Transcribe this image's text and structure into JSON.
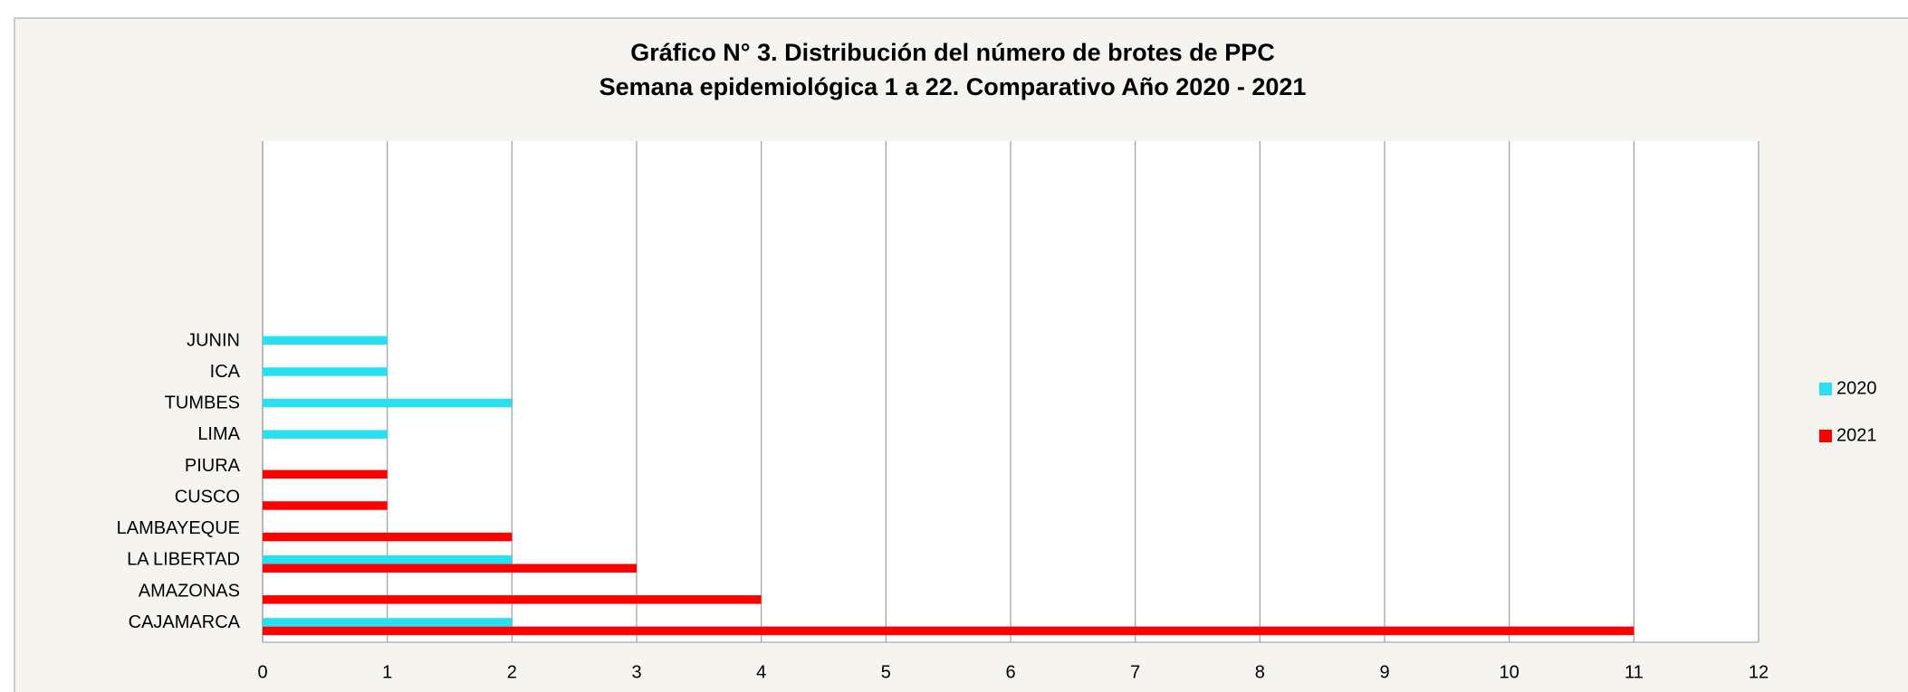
{
  "chart_data": {
    "type": "hbar",
    "title": "Gráfico N° 3. Distribución del número de brotes de PPC",
    "subtitle": "Semana epidemiológica 1 a 22. Comparativo Año 2020 - 2021",
    "categories": [
      "CAJAMARCA",
      "AMAZONAS",
      "LA LIBERTAD",
      "LAMBAYEQUE",
      "CUSCO",
      "PIURA",
      "LIMA",
      "TUMBES",
      "ICA",
      "JUNIN",
      null,
      null,
      null,
      null,
      null,
      null
    ],
    "series": [
      {
        "name": "2020",
        "color": "#29e0f0",
        "values": [
          2,
          null,
          2,
          null,
          null,
          null,
          1,
          2,
          1,
          1,
          null,
          null,
          null,
          null,
          null,
          null
        ]
      },
      {
        "name": "2021",
        "color": "#ff0000",
        "values": [
          11,
          4,
          3,
          2,
          1,
          1,
          null,
          null,
          null,
          null,
          null,
          null,
          null,
          null,
          null,
          null
        ]
      }
    ],
    "xlim": [
      0,
      12
    ],
    "xticks": [
      0,
      1,
      2,
      3,
      4,
      5,
      6,
      7,
      8,
      9,
      10,
      11,
      12
    ],
    "grid": true,
    "legend": "right"
  }
}
